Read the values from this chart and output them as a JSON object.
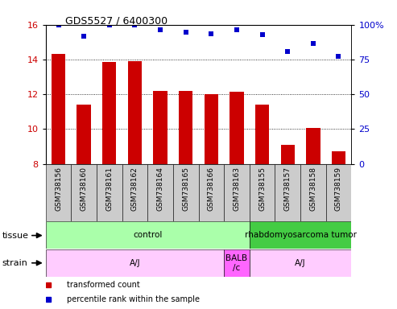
{
  "title": "GDS5527 / 6400300",
  "samples": [
    "GSM738156",
    "GSM738160",
    "GSM738161",
    "GSM738162",
    "GSM738164",
    "GSM738165",
    "GSM738166",
    "GSM738163",
    "GSM738155",
    "GSM738157",
    "GSM738158",
    "GSM738159"
  ],
  "bar_values": [
    14.3,
    11.4,
    13.85,
    13.9,
    12.2,
    12.2,
    12.0,
    12.15,
    11.4,
    9.1,
    10.05,
    8.7
  ],
  "scatter_values": [
    16.0,
    15.35,
    16.0,
    16.0,
    15.7,
    15.55,
    15.5,
    15.7,
    15.45,
    14.45,
    14.9,
    14.2
  ],
  "ylim_left": [
    8,
    16
  ],
  "ylim_right": [
    0,
    100
  ],
  "yticks_left": [
    8,
    10,
    12,
    14,
    16
  ],
  "yticks_right": [
    0,
    25,
    50,
    75,
    100
  ],
  "bar_color": "#cc0000",
  "scatter_color": "#0000cc",
  "tissue_labels": [
    {
      "text": "control",
      "start": 0,
      "end": 7,
      "color": "#aaffaa"
    },
    {
      "text": "rhabdomyosarcoma tumor",
      "start": 8,
      "end": 11,
      "color": "#44cc44"
    }
  ],
  "strain_labels": [
    {
      "text": "A/J",
      "start": 0,
      "end": 6,
      "color": "#ffccff"
    },
    {
      "text": "BALB\n/c",
      "start": 7,
      "end": 7,
      "color": "#ff66ff"
    },
    {
      "text": "A/J",
      "start": 8,
      "end": 11,
      "color": "#ffccff"
    }
  ],
  "tick_bg_color": "#cccccc",
  "background_color": "#ffffff",
  "tick_label_color_left": "#cc0000",
  "tick_label_color_right": "#0000cc",
  "legend_items": [
    {
      "label": "transformed count",
      "color": "#cc0000"
    },
    {
      "label": "percentile rank within the sample",
      "color": "#0000cc"
    }
  ]
}
